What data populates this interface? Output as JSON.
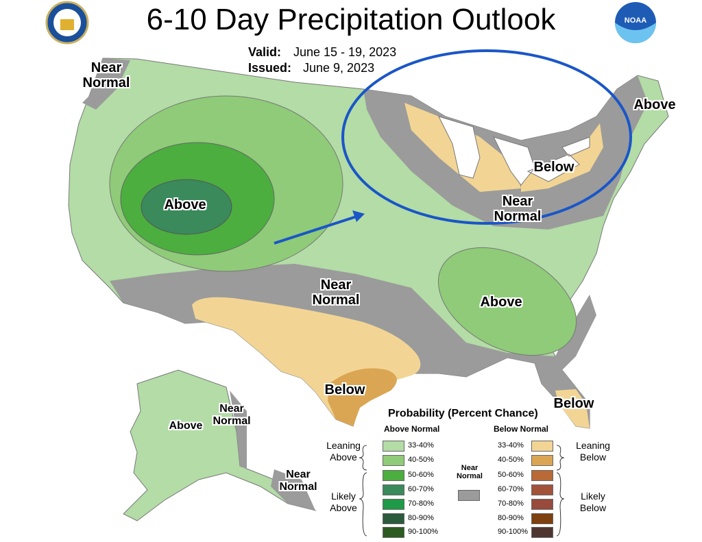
{
  "header": {
    "title": "6-10 Day Precipitation Outlook",
    "valid_label": "Valid:",
    "valid": "June 15 - 19, 2023",
    "issued_label": "Issued:",
    "issued": "June 9, 2023",
    "noaa": "NOAA"
  },
  "map_labels": [
    "Near Normal",
    "Above",
    "Near Normal",
    "Below",
    "Above",
    "Near Normal",
    "Above",
    "Below",
    "Below",
    "Above",
    "Near Normal",
    "Near Normal"
  ],
  "legend": {
    "title": "Probability (Percent Chance)",
    "above_header": "Above Normal",
    "below_header": "Below Normal",
    "near_label": "Near Normal",
    "near_color": "#9b9b9b",
    "leaning_above": "Leaning Above",
    "likely_above": "Likely Above",
    "leaning_below": "Leaning Below",
    "likely_below": "Likely Below",
    "above": [
      {
        "range": "33-40%",
        "color": "#b3dca6"
      },
      {
        "range": "40-50%",
        "color": "#8fcb78"
      },
      {
        "range": "50-60%",
        "color": "#4bae3f"
      },
      {
        "range": "60-70%",
        "color": "#3a8a5c"
      },
      {
        "range": "70-80%",
        "color": "#1f9a48"
      },
      {
        "range": "80-90%",
        "color": "#2b5a3c"
      },
      {
        "range": "90-100%",
        "color": "#2c5a20"
      }
    ],
    "below": [
      {
        "range": "33-40%",
        "color": "#f2d595"
      },
      {
        "range": "40-50%",
        "color": "#dba653"
      },
      {
        "range": "50-60%",
        "color": "#b96a37"
      },
      {
        "range": "60-70%",
        "color": "#a3523a"
      },
      {
        "range": "70-80%",
        "color": "#984a3c"
      },
      {
        "range": "80-90%",
        "color": "#7d400e"
      },
      {
        "range": "90-100%",
        "color": "#4f3530"
      }
    ]
  }
}
